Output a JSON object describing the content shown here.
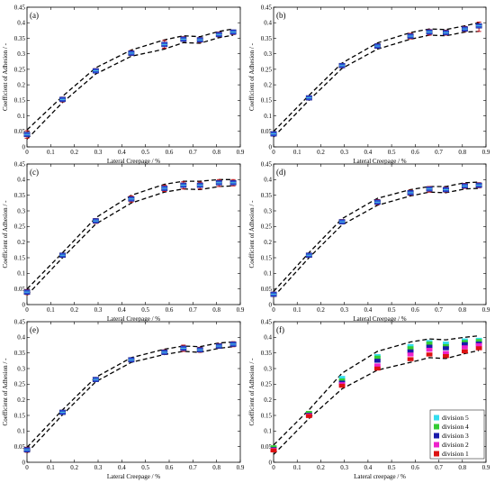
{
  "chart_data": [
    {
      "type": "scatter",
      "panel_label": "(a)",
      "xlabel": "Lateral Creepage / %",
      "ylabel": "Coefficient of Adhesion / -",
      "xlim": [
        0,
        0.9
      ],
      "ylim": [
        0,
        0.45
      ],
      "xticks": [
        "0",
        "0.1",
        "0.2",
        "0.3",
        "0.4",
        "0.5",
        "0.6",
        "0.7",
        "0.8",
        "0.9"
      ],
      "yticks": [
        "0",
        "0.05",
        "0.1",
        "0.15",
        "0.2",
        "0.25",
        "0.3",
        "0.35",
        "0.4",
        "0.45"
      ],
      "grid": false,
      "points": [
        {
          "x": 0.0,
          "y": 0.04,
          "lo": 0.028,
          "hi": 0.052
        },
        {
          "x": 0.15,
          "y": 0.153,
          "lo": 0.145,
          "hi": 0.16
        },
        {
          "x": 0.29,
          "y": 0.245,
          "lo": 0.238,
          "hi": 0.252
        },
        {
          "x": 0.44,
          "y": 0.302,
          "lo": 0.295,
          "hi": 0.31
        },
        {
          "x": 0.58,
          "y": 0.33,
          "lo": 0.318,
          "hi": 0.343
        },
        {
          "x": 0.66,
          "y": 0.347,
          "lo": 0.34,
          "hi": 0.355
        },
        {
          "x": 0.73,
          "y": 0.345,
          "lo": 0.337,
          "hi": 0.352
        },
        {
          "x": 0.81,
          "y": 0.362,
          "lo": 0.355,
          "hi": 0.37
        },
        {
          "x": 0.87,
          "y": 0.37,
          "lo": 0.362,
          "hi": 0.376
        }
      ],
      "upper": {
        "x": [
          0,
          0.15,
          0.29,
          0.44,
          0.58,
          0.66,
          0.73,
          0.81,
          0.87
        ],
        "y": [
          0.055,
          0.163,
          0.255,
          0.312,
          0.345,
          0.358,
          0.355,
          0.372,
          0.38
        ]
      },
      "lower": {
        "x": [
          0,
          0.15,
          0.29,
          0.44,
          0.58,
          0.66,
          0.73,
          0.81,
          0.87
        ],
        "y": [
          0.025,
          0.143,
          0.235,
          0.292,
          0.315,
          0.336,
          0.334,
          0.352,
          0.36
        ]
      }
    },
    {
      "type": "scatter",
      "panel_label": "(b)",
      "xlabel": "Lateral Creepage / %",
      "ylabel": "Coefficient of Adhesion / -",
      "xlim": [
        0,
        0.9
      ],
      "ylim": [
        0,
        0.45
      ],
      "xticks": [
        "0",
        "0.1",
        "0.2",
        "0.3",
        "0.4",
        "0.5",
        "0.6",
        "0.7",
        "0.8",
        "0.9"
      ],
      "yticks": [
        "0",
        "0.05",
        "0.1",
        "0.15",
        "0.2",
        "0.25",
        "0.3",
        "0.35",
        "0.4",
        "0.45"
      ],
      "grid": false,
      "points": [
        {
          "x": 0.0,
          "y": 0.042,
          "lo": 0.035,
          "hi": 0.048
        },
        {
          "x": 0.15,
          "y": 0.158,
          "lo": 0.152,
          "hi": 0.164
        },
        {
          "x": 0.29,
          "y": 0.262,
          "lo": 0.255,
          "hi": 0.268
        },
        {
          "x": 0.44,
          "y": 0.325,
          "lo": 0.318,
          "hi": 0.332
        },
        {
          "x": 0.58,
          "y": 0.357,
          "lo": 0.348,
          "hi": 0.366
        },
        {
          "x": 0.66,
          "y": 0.37,
          "lo": 0.36,
          "hi": 0.378
        },
        {
          "x": 0.73,
          "y": 0.368,
          "lo": 0.36,
          "hi": 0.376
        },
        {
          "x": 0.81,
          "y": 0.38,
          "lo": 0.372,
          "hi": 0.388
        },
        {
          "x": 0.87,
          "y": 0.39,
          "lo": 0.372,
          "hi": 0.402
        }
      ],
      "upper": {
        "x": [
          0,
          0.15,
          0.29,
          0.44,
          0.58,
          0.66,
          0.73,
          0.81,
          0.87
        ],
        "y": [
          0.05,
          0.166,
          0.27,
          0.335,
          0.368,
          0.38,
          0.378,
          0.39,
          0.4
        ]
      },
      "lower": {
        "x": [
          0,
          0.15,
          0.29,
          0.44,
          0.58,
          0.66,
          0.73,
          0.81,
          0.87
        ],
        "y": [
          0.032,
          0.15,
          0.253,
          0.315,
          0.347,
          0.36,
          0.358,
          0.37,
          0.372
        ]
      }
    },
    {
      "type": "scatter",
      "panel_label": "(c)",
      "xlabel": "Lateral Creepage / %",
      "ylabel": "Coefficient of Adhesion / -",
      "xlim": [
        0,
        0.9
      ],
      "ylim": [
        0,
        0.45
      ],
      "xticks": [
        "0",
        "0.1",
        "0.2",
        "0.3",
        "0.4",
        "0.5",
        "0.6",
        "0.7",
        "0.8",
        "0.9"
      ],
      "yticks": [
        "0",
        "0.05",
        "0.1",
        "0.15",
        "0.2",
        "0.25",
        "0.3",
        "0.35",
        "0.4",
        "0.45"
      ],
      "grid": false,
      "points": [
        {
          "x": 0.0,
          "y": 0.04,
          "lo": 0.032,
          "hi": 0.048
        },
        {
          "x": 0.15,
          "y": 0.158,
          "lo": 0.152,
          "hi": 0.164
        },
        {
          "x": 0.29,
          "y": 0.268,
          "lo": 0.26,
          "hi": 0.275
        },
        {
          "x": 0.44,
          "y": 0.338,
          "lo": 0.328,
          "hi": 0.348
        },
        {
          "x": 0.58,
          "y": 0.372,
          "lo": 0.362,
          "hi": 0.382
        },
        {
          "x": 0.66,
          "y": 0.382,
          "lo": 0.37,
          "hi": 0.393
        },
        {
          "x": 0.73,
          "y": 0.382,
          "lo": 0.37,
          "hi": 0.392
        },
        {
          "x": 0.81,
          "y": 0.39,
          "lo": 0.378,
          "hi": 0.4
        },
        {
          "x": 0.87,
          "y": 0.39,
          "lo": 0.38,
          "hi": 0.4
        }
      ],
      "upper": {
        "x": [
          0,
          0.15,
          0.29,
          0.44,
          0.58,
          0.66,
          0.73,
          0.81,
          0.87
        ],
        "y": [
          0.05,
          0.166,
          0.278,
          0.35,
          0.385,
          0.395,
          0.395,
          0.4,
          0.4
        ]
      },
      "lower": {
        "x": [
          0,
          0.15,
          0.29,
          0.44,
          0.58,
          0.66,
          0.73,
          0.81,
          0.87
        ],
        "y": [
          0.03,
          0.15,
          0.258,
          0.325,
          0.36,
          0.37,
          0.368,
          0.378,
          0.38
        ]
      }
    },
    {
      "type": "scatter",
      "panel_label": "(d)",
      "xlabel": "Lateral Creepage / %",
      "ylabel": "Coefficient of Adhesion / -",
      "xlim": [
        0,
        0.9
      ],
      "ylim": [
        0,
        0.45
      ],
      "xticks": [
        "0",
        "0.1",
        "0.2",
        "0.3",
        "0.4",
        "0.5",
        "0.6",
        "0.7",
        "0.8",
        "0.9"
      ],
      "yticks": [
        "0",
        "0.05",
        "0.1",
        "0.15",
        "0.2",
        "0.25",
        "0.3",
        "0.35",
        "0.4",
        "0.45"
      ],
      "grid": false,
      "points": [
        {
          "x": 0.0,
          "y": 0.033,
          "lo": 0.026,
          "hi": 0.04
        },
        {
          "x": 0.15,
          "y": 0.158,
          "lo": 0.152,
          "hi": 0.164
        },
        {
          "x": 0.29,
          "y": 0.265,
          "lo": 0.258,
          "hi": 0.272
        },
        {
          "x": 0.44,
          "y": 0.328,
          "lo": 0.32,
          "hi": 0.336
        },
        {
          "x": 0.58,
          "y": 0.358,
          "lo": 0.35,
          "hi": 0.366
        },
        {
          "x": 0.66,
          "y": 0.37,
          "lo": 0.36,
          "hi": 0.378
        },
        {
          "x": 0.73,
          "y": 0.368,
          "lo": 0.36,
          "hi": 0.376
        },
        {
          "x": 0.81,
          "y": 0.38,
          "lo": 0.372,
          "hi": 0.388
        },
        {
          "x": 0.87,
          "y": 0.382,
          "lo": 0.374,
          "hi": 0.39
        }
      ],
      "upper": {
        "x": [
          0,
          0.15,
          0.29,
          0.44,
          0.58,
          0.66,
          0.73,
          0.81,
          0.87
        ],
        "y": [
          0.042,
          0.166,
          0.275,
          0.34,
          0.368,
          0.378,
          0.378,
          0.39,
          0.392
        ]
      },
      "lower": {
        "x": [
          0,
          0.15,
          0.29,
          0.44,
          0.58,
          0.66,
          0.73,
          0.81,
          0.87
        ],
        "y": [
          0.025,
          0.15,
          0.255,
          0.318,
          0.348,
          0.36,
          0.358,
          0.37,
          0.372
        ]
      }
    },
    {
      "type": "scatter",
      "panel_label": "(e)",
      "xlabel": "Lateral Creepage / %",
      "ylabel": "Coefficient of Adhesion / -",
      "xlim": [
        0,
        0.9
      ],
      "ylim": [
        0,
        0.45
      ],
      "xticks": [
        "0",
        "0.1",
        "0.2",
        "0.3",
        "0.4",
        "0.5",
        "0.6",
        "0.7",
        "0.8",
        "0.9"
      ],
      "yticks": [
        "0",
        "0.05",
        "0.1",
        "0.15",
        "0.2",
        "0.25",
        "0.3",
        "0.35",
        "0.4",
        "0.45"
      ],
      "grid": false,
      "points": [
        {
          "x": 0.0,
          "y": 0.04,
          "lo": 0.032,
          "hi": 0.048
        },
        {
          "x": 0.15,
          "y": 0.16,
          "lo": 0.154,
          "hi": 0.166
        },
        {
          "x": 0.29,
          "y": 0.265,
          "lo": 0.26,
          "hi": 0.27
        },
        {
          "x": 0.44,
          "y": 0.328,
          "lo": 0.322,
          "hi": 0.334
        },
        {
          "x": 0.58,
          "y": 0.352,
          "lo": 0.345,
          "hi": 0.36
        },
        {
          "x": 0.66,
          "y": 0.365,
          "lo": 0.355,
          "hi": 0.375
        },
        {
          "x": 0.73,
          "y": 0.36,
          "lo": 0.352,
          "hi": 0.368
        },
        {
          "x": 0.81,
          "y": 0.372,
          "lo": 0.365,
          "hi": 0.38
        },
        {
          "x": 0.87,
          "y": 0.378,
          "lo": 0.37,
          "hi": 0.386
        }
      ],
      "upper": {
        "x": [
          0,
          0.15,
          0.29,
          0.44,
          0.58,
          0.66,
          0.73,
          0.81,
          0.87
        ],
        "y": [
          0.048,
          0.168,
          0.272,
          0.335,
          0.362,
          0.372,
          0.37,
          0.382,
          0.385
        ]
      },
      "lower": {
        "x": [
          0,
          0.15,
          0.29,
          0.44,
          0.58,
          0.66,
          0.73,
          0.81,
          0.87
        ],
        "y": [
          0.03,
          0.152,
          0.258,
          0.32,
          0.345,
          0.355,
          0.352,
          0.365,
          0.37
        ]
      }
    },
    {
      "type": "scatter",
      "panel_label": "(f)",
      "xlabel": "Lateral creepage / %",
      "ylabel": "Coefficient of Adhesion / -",
      "xlim": [
        0,
        0.9
      ],
      "ylim": [
        0,
        0.45
      ],
      "xticks": [
        "0",
        "0.1",
        "0.2",
        "0.3",
        "0.4",
        "0.5",
        "0.6",
        "0.7",
        "0.8",
        "0.9"
      ],
      "yticks": [
        "0",
        "0.05",
        "0.1",
        "0.15",
        "0.2",
        "0.25",
        "0.3",
        "0.35",
        "0.4",
        "0.45"
      ],
      "grid": false,
      "legend_position": "bottom-right",
      "legend": [
        {
          "name": "division 5",
          "color": "#33ddee"
        },
        {
          "name": "division 4",
          "color": "#33cc33"
        },
        {
          "name": "division 3",
          "color": "#1a1aaa"
        },
        {
          "name": "division 2",
          "color": "#ee22cc"
        },
        {
          "name": "division 1",
          "color": "#dd1111"
        }
      ],
      "division_points": {
        "x": [
          0.0,
          0.15,
          0.29,
          0.44,
          0.58,
          0.66,
          0.73,
          0.81,
          0.87
        ],
        "division 5": [
          0.045,
          0.155,
          0.27,
          0.34,
          0.372,
          0.385,
          0.38,
          0.39,
          0.392
        ],
        "division 4": [
          0.048,
          0.158,
          0.262,
          0.335,
          0.365,
          0.38,
          0.372,
          0.385,
          0.388
        ],
        "division 3": [
          0.042,
          0.152,
          0.255,
          0.325,
          0.355,
          0.37,
          0.365,
          0.378,
          0.38
        ],
        "division 2": [
          0.04,
          0.15,
          0.25,
          0.31,
          0.345,
          0.36,
          0.35,
          0.368,
          0.375
        ],
        "division 1": [
          0.038,
          0.148,
          0.245,
          0.3,
          0.33,
          0.345,
          0.34,
          0.355,
          0.365
        ]
      },
      "upper": {
        "x": [
          0,
          0.15,
          0.29,
          0.44,
          0.58,
          0.66,
          0.73,
          0.81,
          0.87
        ],
        "y": [
          0.055,
          0.168,
          0.285,
          0.355,
          0.385,
          0.395,
          0.392,
          0.4,
          0.405
        ]
      },
      "lower": {
        "x": [
          0,
          0.15,
          0.29,
          0.44,
          0.58,
          0.66,
          0.73,
          0.81,
          0.87
        ],
        "y": [
          0.025,
          0.14,
          0.235,
          0.295,
          0.32,
          0.335,
          0.332,
          0.348,
          0.358
        ]
      }
    }
  ]
}
